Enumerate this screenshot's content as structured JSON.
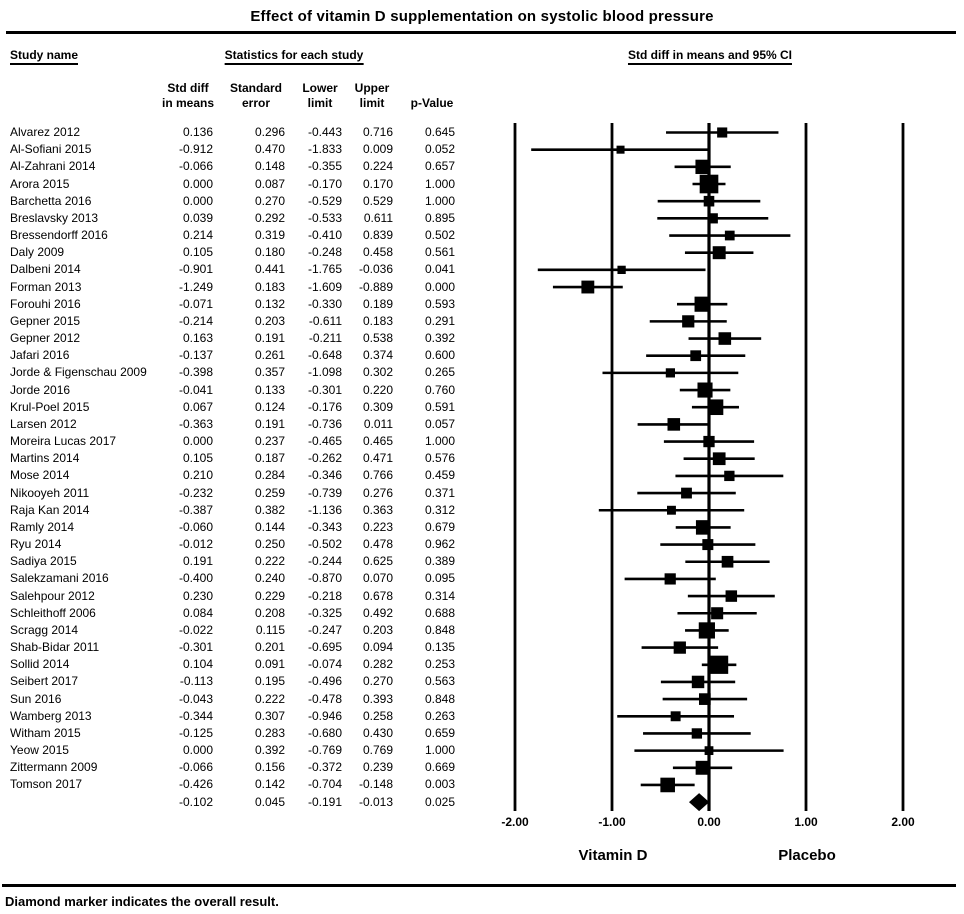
{
  "title": "Effect of vitamin D supplementation on systolic blood pressure",
  "footnote": "Diamond marker indicates the overall result.",
  "table": {
    "study_col_header": "Study name",
    "stats_group_header": "Statistics for each study",
    "plot_header": "Std diff in means and 95% CI",
    "columns": {
      "c1": "Std diff\nin means",
      "c2": "Standard\nerror",
      "c3": "Lower\nlimit",
      "c4": "Upper\nlimit",
      "c5": "p-Value"
    }
  },
  "chart_data": {
    "type": "forest",
    "title": "Effect of vitamin D supplementation on systolic blood pressure",
    "xlim": [
      -2.0,
      2.0
    ],
    "x_ticks": [
      -2,
      -1,
      0,
      1,
      2
    ],
    "x_tick_labels": [
      "-2.00",
      "-1.00",
      "0.00",
      "1.00",
      "2.00"
    ],
    "xlabel_left": "Vitamin D",
    "xlabel_right": "Placebo",
    "grid": "vertical-lines-at-ticks",
    "marker": "square-sized-by-weight",
    "overall_marker": "diamond",
    "studies": [
      {
        "name": "Alvarez 2012",
        "std_diff": "0.136",
        "se": "0.296",
        "lower": "-0.443",
        "upper": "0.716",
        "p": "0.645"
      },
      {
        "name": "Al-Sofiani 2015",
        "std_diff": "-0.912",
        "se": "0.470",
        "lower": "-1.833",
        "upper": "0.009",
        "p": "0.052"
      },
      {
        "name": "Al-Zahrani 2014",
        "std_diff": "-0.066",
        "se": "0.148",
        "lower": "-0.355",
        "upper": "0.224",
        "p": "0.657"
      },
      {
        "name": "Arora 2015",
        "std_diff": "0.000",
        "se": "0.087",
        "lower": "-0.170",
        "upper": "0.170",
        "p": "1.000"
      },
      {
        "name": "Barchetta 2016",
        "std_diff": "0.000",
        "se": "0.270",
        "lower": "-0.529",
        "upper": "0.529",
        "p": "1.000"
      },
      {
        "name": "Breslavsky 2013",
        "std_diff": "0.039",
        "se": "0.292",
        "lower": "-0.533",
        "upper": "0.611",
        "p": "0.895"
      },
      {
        "name": "Bressendorff 2016",
        "std_diff": "0.214",
        "se": "0.319",
        "lower": "-0.410",
        "upper": "0.839",
        "p": "0.502"
      },
      {
        "name": "Daly 2009",
        "std_diff": "0.105",
        "se": "0.180",
        "lower": "-0.248",
        "upper": "0.458",
        "p": "0.561"
      },
      {
        "name": "Dalbeni 2014",
        "std_diff": "-0.901",
        "se": "0.441",
        "lower": "-1.765",
        "upper": "-0.036",
        "p": "0.041"
      },
      {
        "name": "Forman 2013",
        "std_diff": "-1.249",
        "se": "0.183",
        "lower": "-1.609",
        "upper": "-0.889",
        "p": "0.000"
      },
      {
        "name": "Forouhi 2016",
        "std_diff": "-0.071",
        "se": "0.132",
        "lower": "-0.330",
        "upper": "0.189",
        "p": "0.593"
      },
      {
        "name": "Gepner 2015",
        "std_diff": "-0.214",
        "se": "0.203",
        "lower": "-0.611",
        "upper": "0.183",
        "p": "0.291"
      },
      {
        "name": "Gepner 2012",
        "std_diff": "0.163",
        "se": "0.191",
        "lower": "-0.211",
        "upper": "0.538",
        "p": "0.392"
      },
      {
        "name": "Jafari 2016",
        "std_diff": "-0.137",
        "se": "0.261",
        "lower": "-0.648",
        "upper": "0.374",
        "p": "0.600"
      },
      {
        "name": "Jorde & Figenschau 2009",
        "std_diff": "-0.398",
        "se": "0.357",
        "lower": "-1.098",
        "upper": "0.302",
        "p": "0.265"
      },
      {
        "name": "Jorde 2016",
        "std_diff": "-0.041",
        "se": "0.133",
        "lower": "-0.301",
        "upper": "0.220",
        "p": "0.760"
      },
      {
        "name": "Krul-Poel 2015",
        "std_diff": "0.067",
        "se": "0.124",
        "lower": "-0.176",
        "upper": "0.309",
        "p": "0.591"
      },
      {
        "name": "Larsen 2012",
        "std_diff": "-0.363",
        "se": "0.191",
        "lower": "-0.736",
        "upper": "0.011",
        "p": "0.057"
      },
      {
        "name": "Moreira Lucas 2017",
        "std_diff": "0.000",
        "se": "0.237",
        "lower": "-0.465",
        "upper": "0.465",
        "p": "1.000"
      },
      {
        "name": "Martins 2014",
        "std_diff": "0.105",
        "se": "0.187",
        "lower": "-0.262",
        "upper": "0.471",
        "p": "0.576"
      },
      {
        "name": "Mose 2014",
        "std_diff": "0.210",
        "se": "0.284",
        "lower": "-0.346",
        "upper": "0.766",
        "p": "0.459"
      },
      {
        "name": "Nikooyeh 2011",
        "std_diff": "-0.232",
        "se": "0.259",
        "lower": "-0.739",
        "upper": "0.276",
        "p": "0.371"
      },
      {
        "name": "Raja Kan 2014",
        "std_diff": "-0.387",
        "se": "0.382",
        "lower": "-1.136",
        "upper": "0.363",
        "p": "0.312"
      },
      {
        "name": "Ramly 2014",
        "std_diff": "-0.060",
        "se": "0.144",
        "lower": "-0.343",
        "upper": "0.223",
        "p": "0.679"
      },
      {
        "name": "Ryu 2014",
        "std_diff": "-0.012",
        "se": "0.250",
        "lower": "-0.502",
        "upper": "0.478",
        "p": "0.962"
      },
      {
        "name": "Sadiya 2015",
        "std_diff": "0.191",
        "se": "0.222",
        "lower": "-0.244",
        "upper": "0.625",
        "p": "0.389"
      },
      {
        "name": "Salekzamani 2016",
        "std_diff": "-0.400",
        "se": "0.240",
        "lower": "-0.870",
        "upper": "0.070",
        "p": "0.095"
      },
      {
        "name": "Salehpour 2012",
        "std_diff": "0.230",
        "se": "0.229",
        "lower": "-0.218",
        "upper": "0.678",
        "p": "0.314"
      },
      {
        "name": "Schleithoff 2006",
        "std_diff": "0.084",
        "se": "0.208",
        "lower": "-0.325",
        "upper": "0.492",
        "p": "0.688"
      },
      {
        "name": "Scragg 2014",
        "std_diff": "-0.022",
        "se": "0.115",
        "lower": "-0.247",
        "upper": "0.203",
        "p": "0.848"
      },
      {
        "name": "Shab-Bidar 2011",
        "std_diff": "-0.301",
        "se": "0.201",
        "lower": "-0.695",
        "upper": "0.094",
        "p": "0.135"
      },
      {
        "name": "Sollid 2014",
        "std_diff": "0.104",
        "se": "0.091",
        "lower": "-0.074",
        "upper": "0.282",
        "p": "0.253"
      },
      {
        "name": "Seibert 2017",
        "std_diff": "-0.113",
        "se": "0.195",
        "lower": "-0.496",
        "upper": "0.270",
        "p": "0.563"
      },
      {
        "name": "Sun 2016",
        "std_diff": "-0.043",
        "se": "0.222",
        "lower": "-0.478",
        "upper": "0.393",
        "p": "0.848"
      },
      {
        "name": "Wamberg 2013",
        "std_diff": "-0.344",
        "se": "0.307",
        "lower": "-0.946",
        "upper": "0.258",
        "p": "0.263"
      },
      {
        "name": "Witham 2015",
        "std_diff": "-0.125",
        "se": "0.283",
        "lower": "-0.680",
        "upper": "0.430",
        "p": "0.659"
      },
      {
        "name": "Yeow 2015",
        "std_diff": "0.000",
        "se": "0.392",
        "lower": "-0.769",
        "upper": "0.769",
        "p": "1.000"
      },
      {
        "name": "Zittermann 2009",
        "std_diff": "-0.066",
        "se": "0.156",
        "lower": "-0.372",
        "upper": "0.239",
        "p": "0.669"
      },
      {
        "name": "Tomson 2017",
        "std_diff": "-0.426",
        "se": "0.142",
        "lower": "-0.704",
        "upper": "-0.148",
        "p": "0.003"
      }
    ],
    "overall": {
      "std_diff": "-0.102",
      "se": "0.045",
      "lower": "-0.191",
      "upper": "-0.013",
      "p": "0.025"
    }
  }
}
